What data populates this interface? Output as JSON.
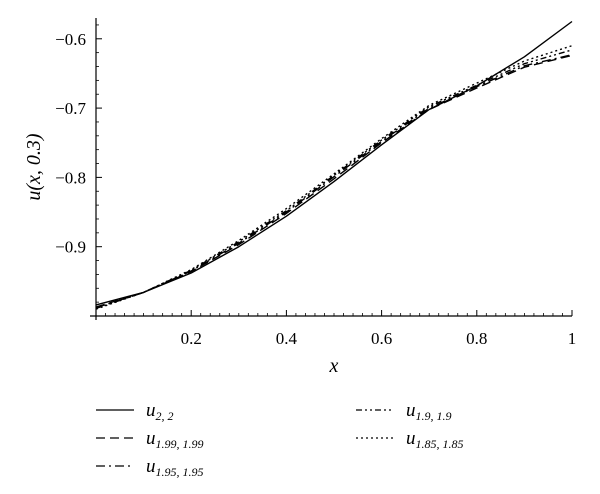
{
  "chart_data": {
    "type": "line",
    "xlabel": "x",
    "ylabel": "u(x, 0.3)",
    "xlim": [
      0,
      1
    ],
    "ylim": [
      -1,
      -0.57
    ],
    "xticks": [
      0.2,
      0.4,
      0.6,
      0.8,
      1
    ],
    "xtick_labels": [
      "0.2",
      "0.4",
      "0.6",
      "0.8",
      "1"
    ],
    "yticks": [
      -0.9,
      -0.8,
      -0.7,
      -0.6
    ],
    "ytick_labels": [
      "−0.9",
      "−0.8",
      "−0.7",
      "−0.6"
    ],
    "legend_position": "bottom",
    "x": [
      0,
      0.1,
      0.2,
      0.3,
      0.4,
      0.5,
      0.6,
      0.7,
      0.8,
      0.9,
      1.0
    ],
    "series": [
      {
        "name": "u",
        "subscript": "2, 2",
        "dash": "solid",
        "values": [
          -0.984,
          -0.966,
          -0.938,
          -0.9,
          -0.856,
          -0.806,
          -0.753,
          -0.702,
          -0.668,
          -0.626,
          -0.575
        ]
      },
      {
        "name": "u",
        "subscript": "1.99, 1.99",
        "dash": "dashed",
        "values": [
          -0.987,
          -0.966,
          -0.936,
          -0.897,
          -0.852,
          -0.802,
          -0.75,
          -0.702,
          -0.671,
          -0.641,
          -0.624
        ]
      },
      {
        "name": "u",
        "subscript": "1.95, 1.95",
        "dash": "dashdot",
        "values": [
          -0.988,
          -0.966,
          -0.935,
          -0.895,
          -0.85,
          -0.799,
          -0.748,
          -0.7,
          -0.669,
          -0.639,
          -0.623
        ]
      },
      {
        "name": "u",
        "subscript": "1.9, 1.9",
        "dash": "dashdotdot",
        "values": [
          -0.989,
          -0.966,
          -0.934,
          -0.893,
          -0.848,
          -0.797,
          -0.746,
          -0.698,
          -0.667,
          -0.636,
          -0.616
        ]
      },
      {
        "name": "u",
        "subscript": "1.85, 1.85",
        "dash": "dotted",
        "values": [
          -0.99,
          -0.966,
          -0.933,
          -0.891,
          -0.845,
          -0.795,
          -0.744,
          -0.696,
          -0.664,
          -0.632,
          -0.61
        ]
      }
    ]
  }
}
